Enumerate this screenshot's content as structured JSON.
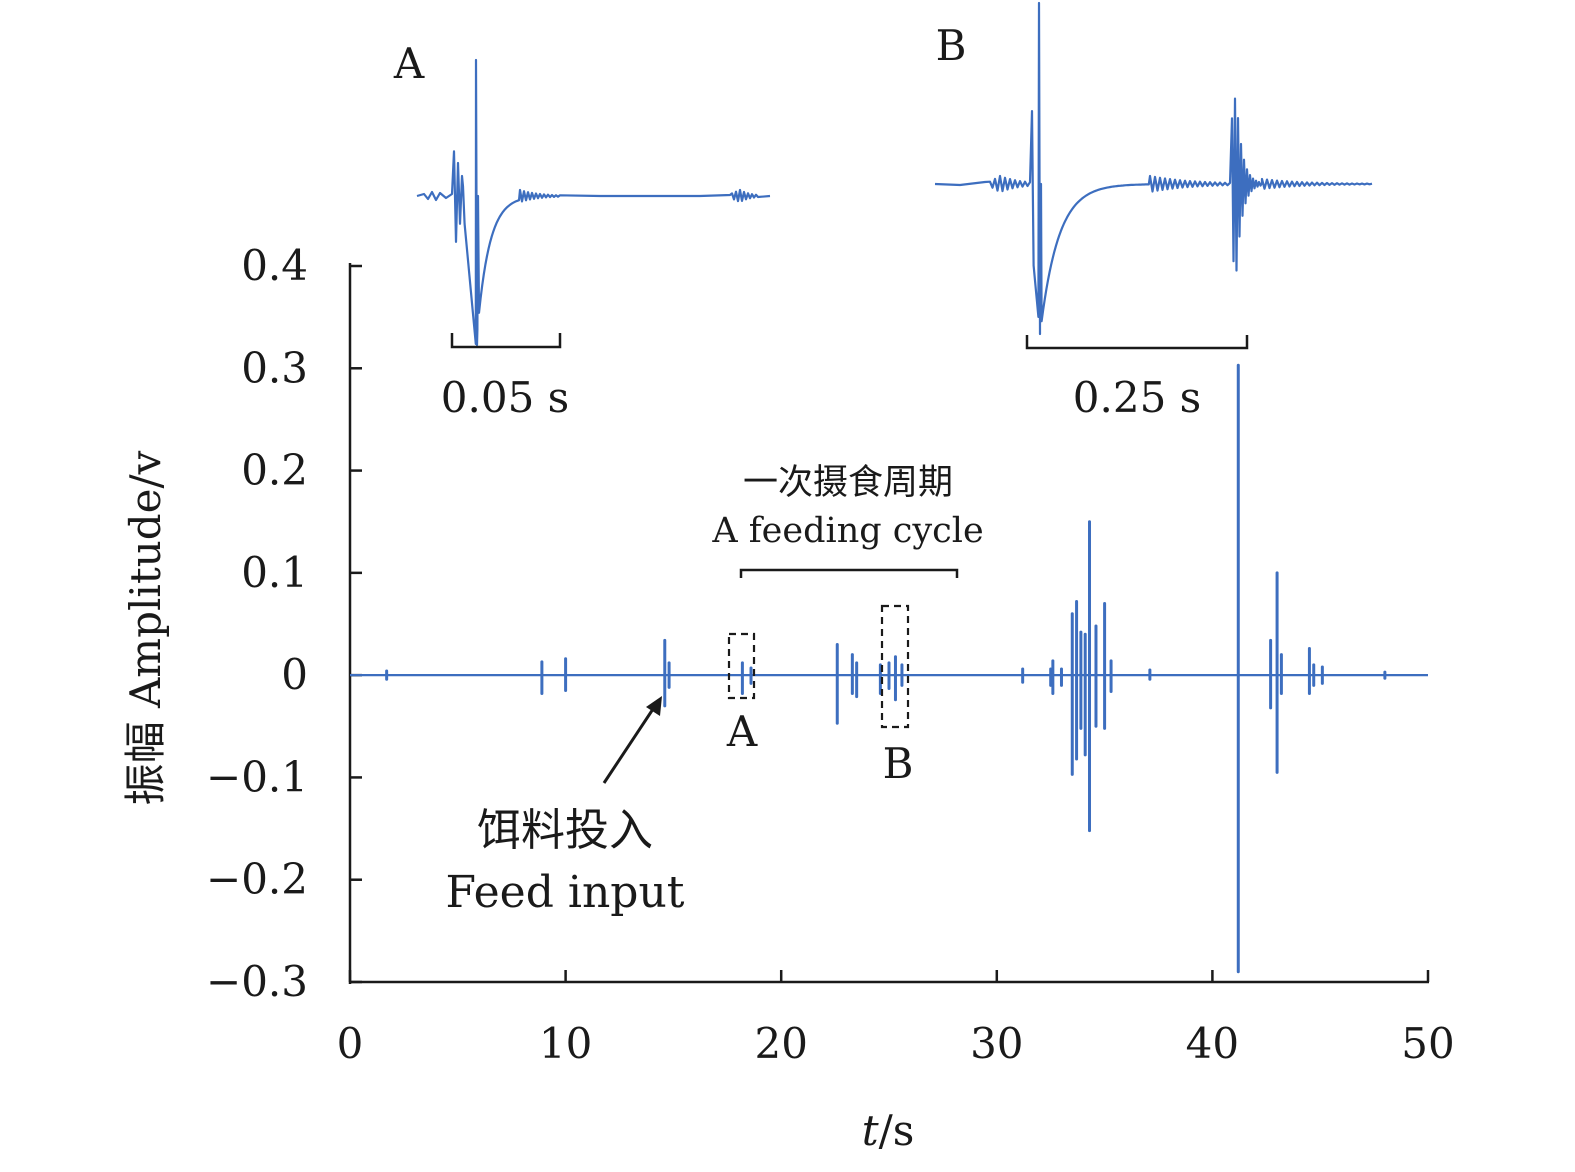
{
  "chart_data": {
    "type": "line",
    "xlabel": "t/s",
    "xlabel_italic": "t",
    "xlabel_unit": "/s",
    "ylabel": "振幅 Amplitude/v",
    "xlim": [
      0,
      50
    ],
    "ylim": [
      -0.3,
      0.4
    ],
    "x_ticks": [
      0,
      10,
      20,
      30,
      40,
      50
    ],
    "x_tick_labels": [
      "0",
      "10",
      "20",
      "30",
      "40",
      "50"
    ],
    "y_ticks": [
      0.4,
      0.3,
      0.2,
      0.1,
      0,
      -0.1,
      -0.2,
      -0.3
    ],
    "y_tick_labels": [
      "0.4",
      "0.3",
      "0.2",
      "0.1",
      "0",
      "−0.1",
      "−0.2",
      "−0.3"
    ],
    "series": [
      {
        "name": "vibration amplitude",
        "color": "#3d6ebf",
        "spikes": [
          {
            "t": 1.7,
            "max": 0.004,
            "min": -0.004
          },
          {
            "t": 8.9,
            "max": 0.013,
            "min": -0.018
          },
          {
            "t": 10.0,
            "max": 0.016,
            "min": -0.015
          },
          {
            "t": 14.6,
            "max": 0.034,
            "min": -0.03
          },
          {
            "t": 14.8,
            "max": 0.012,
            "min": -0.012
          },
          {
            "t": 18.2,
            "max": 0.012,
            "min": -0.018
          },
          {
            "t": 18.6,
            "max": 0.007,
            "min": -0.008
          },
          {
            "t": 22.6,
            "max": 0.03,
            "min": -0.047
          },
          {
            "t": 23.3,
            "max": 0.02,
            "min": -0.018
          },
          {
            "t": 23.5,
            "max": 0.012,
            "min": -0.021
          },
          {
            "t": 24.6,
            "max": 0.01,
            "min": -0.018
          },
          {
            "t": 25.0,
            "max": 0.012,
            "min": -0.013
          },
          {
            "t": 25.3,
            "max": 0.018,
            "min": -0.024
          },
          {
            "t": 25.6,
            "max": 0.01,
            "min": -0.01
          },
          {
            "t": 31.2,
            "max": 0.006,
            "min": -0.007
          },
          {
            "t": 32.5,
            "max": 0.006,
            "min": -0.01
          },
          {
            "t": 32.6,
            "max": 0.014,
            "min": -0.018
          },
          {
            "t": 33.0,
            "max": 0.006,
            "min": -0.01
          },
          {
            "t": 33.5,
            "max": 0.06,
            "min": -0.097
          },
          {
            "t": 33.7,
            "max": 0.072,
            "min": -0.082
          },
          {
            "t": 33.9,
            "max": 0.042,
            "min": -0.052
          },
          {
            "t": 34.1,
            "max": 0.04,
            "min": -0.078
          },
          {
            "t": 34.3,
            "max": 0.15,
            "min": -0.152
          },
          {
            "t": 34.6,
            "max": 0.048,
            "min": -0.05
          },
          {
            "t": 35.0,
            "max": 0.07,
            "min": -0.052
          },
          {
            "t": 35.3,
            "max": 0.014,
            "min": -0.016
          },
          {
            "t": 37.1,
            "max": 0.005,
            "min": -0.004
          },
          {
            "t": 41.2,
            "max": 0.303,
            "min": -0.29
          },
          {
            "t": 42.7,
            "max": 0.034,
            "min": -0.032
          },
          {
            "t": 43.0,
            "max": 0.1,
            "min": -0.095
          },
          {
            "t": 43.2,
            "max": 0.02,
            "min": -0.018
          },
          {
            "t": 44.5,
            "max": 0.026,
            "min": -0.018
          },
          {
            "t": 44.7,
            "max": 0.01,
            "min": -0.01
          },
          {
            "t": 45.1,
            "max": 0.008,
            "min": -0.008
          },
          {
            "t": 48.0,
            "max": 0.003,
            "min": -0.003
          }
        ]
      }
    ],
    "annotations": {
      "feeding_cycle_cn": "一次摄食周期",
      "feeding_cycle_en": "A feeding cycle",
      "feeding_cycle_range": [
        18.2,
        28.2
      ],
      "feed_input_cn": "饵料投入",
      "feed_input_en": "Feed input",
      "feed_input_t": 14.6,
      "box_a_label": "A",
      "box_a_range": [
        18.0,
        19.0
      ],
      "box_b_label": "B",
      "box_b_range": [
        24.9,
        25.9
      ]
    },
    "insets": [
      {
        "label": "A",
        "scale_bar": "0.05 s",
        "source_box": "A"
      },
      {
        "label": "B",
        "scale_bar": "0.25 s",
        "source_box": "B"
      }
    ]
  }
}
